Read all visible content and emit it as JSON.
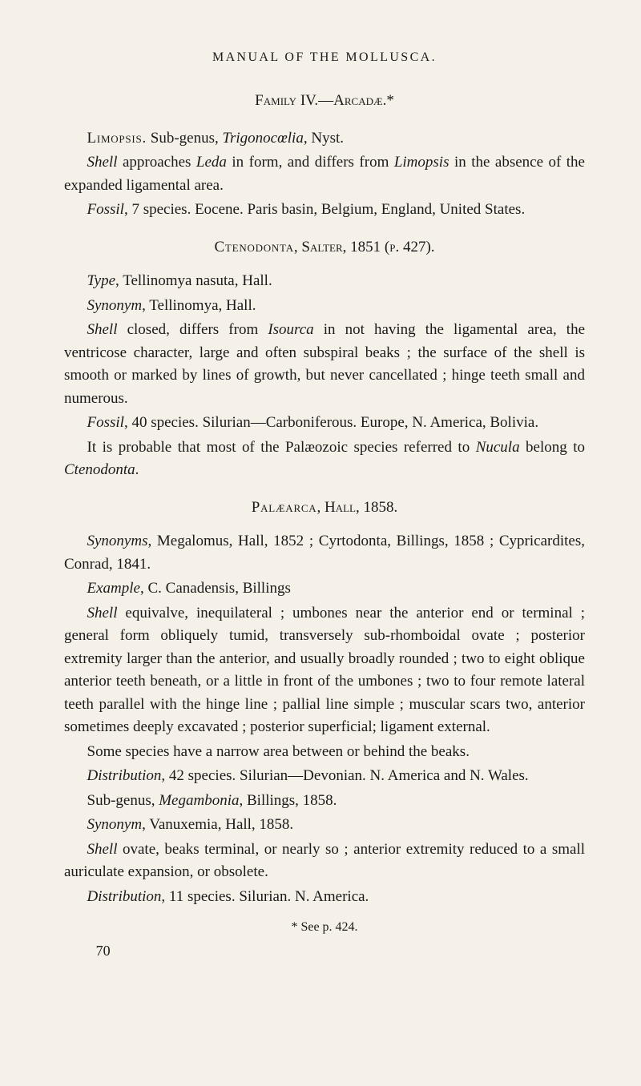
{
  "running_head": "MANUAL OF THE MOLLUSCA.",
  "family_head": "Family IV.—Arcadæ.*",
  "limopsis": {
    "name": "Limopsis.",
    "line1_rest": " Sub-genus, Trigonocœlia, Nyst.",
    "shell": "Shell approaches Leda in form, and differs from Limopsis in the absence of the expanded ligamental area.",
    "fossil": "Fossil, 7 species. Eocene. Paris basin, Belgium, England, United States."
  },
  "ctenodonta": {
    "head": "Ctenodonta, Salter, 1851 (p. 427).",
    "type": "Type, Tellinomya nasuta, Hall.",
    "synonym": "Synonym, Tellinomya, Hall.",
    "shell": "Shell closed, differs from Isourca in not having the ligamental area, the ventricose character, large and often subspiral beaks ; the surface of the shell is smooth or marked by lines of growth, but never cancellated ; hinge teeth small and numerous.",
    "fossil": "Fossil, 40 species. Silurian—Carboniferous. Europe, N. America, Bolivia.",
    "note": "It is probable that most of the Palæozoic species referred to Nucula belong to Ctenodonta."
  },
  "palaearca": {
    "head": "Palæarca, Hall, 1858.",
    "synonyms": "Synonyms, Megalomus, Hall, 1852 ; Cyrtodonta, Billings, 1858 ; Cypricardites, Conrad, 1841.",
    "example": "Example, C. Canadensis, Billings",
    "shell": "Shell equivalve, inequilateral ; umbones near the anterior end or terminal ; general form obliquely tumid, transversely sub-rhomboidal ovate ; posterior extremity larger than the anterior, and usually broadly rounded ; two to eight oblique anterior teeth beneath, or a little in front of the umbones ; two to four remote lateral teeth parallel with the hinge line ; pallial line simple ; muscular scars two, anterior sometimes deeply excavated ; posterior superficial; ligament external.",
    "some": "Some species have a narrow area between or behind the beaks.",
    "distribution": "Distribution, 42 species. Silurian—Devonian. N. America and N. Wales.",
    "subgenus": "Sub-genus, Megambonia, Billings, 1858.",
    "synonym2": "Synonym, Vanuxemia, Hall, 1858.",
    "shell2": "Shell ovate, beaks terminal, or nearly so ; anterior extremity reduced to a small auriculate expansion, or obsolete.",
    "distribution2": "Distribution, 11 species. Silurian. N. America."
  },
  "footnote": "* See p. 424.",
  "page_num": "70"
}
